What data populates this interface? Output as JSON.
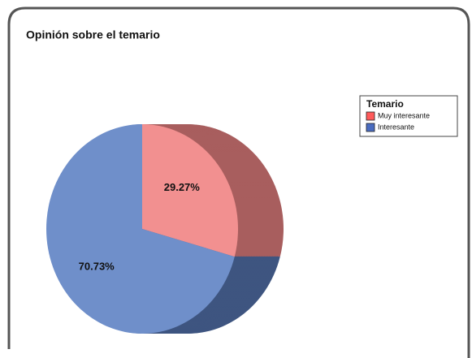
{
  "chart_data": {
    "type": "pie",
    "title": "Opinión sobre el temario",
    "legend_title": "Temario",
    "categories": [
      "Muy interesante",
      "Interesante"
    ],
    "values": [
      29.27,
      70.73
    ],
    "value_labels": [
      "29.27%",
      "70.73%"
    ],
    "colors": [
      "#f29090",
      "#6f8fca"
    ],
    "depth_colors": [
      "#a85e5e",
      "#3e5580"
    ],
    "legend_position": "upper right"
  }
}
